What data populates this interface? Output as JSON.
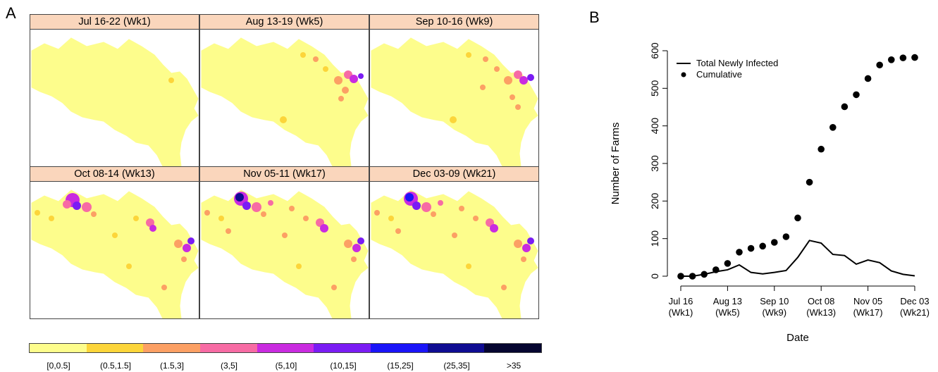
{
  "panel_a_letter": "A",
  "panel_b_letter": "B",
  "maps": [
    {
      "title": "Jul 16-22 (Wk1)"
    },
    {
      "title": "Aug 13-19 (Wk5)"
    },
    {
      "title": "Sep 10-16 (Wk9)"
    },
    {
      "title": "Oct 08-14 (Wk13)"
    },
    {
      "title": "Nov 05-11 (Wk17)"
    },
    {
      "title": "Dec 03-09 (Wk21)"
    }
  ],
  "legend": {
    "labels": [
      "[0,0.5]",
      "(0.5,1.5]",
      "(1.5,3]",
      "(3,5]",
      "(5,10]",
      "(10,15]",
      "(15,25]",
      "(25,35]",
      ">35"
    ],
    "colors": [
      "#fdfd8c",
      "#fcd53a",
      "#fca064",
      "#f76ba4",
      "#c92be0",
      "#7a1cf4",
      "#1a14f8",
      "#0f0c92",
      "#050530"
    ]
  },
  "chart_data": {
    "type": "line",
    "xlabel": "Date",
    "ylabel": "Number of Farms",
    "ylim": [
      0,
      600
    ],
    "yticks": [
      0,
      100,
      200,
      300,
      400,
      500,
      600
    ],
    "xtick_labels": [
      {
        "date": "Jul 16",
        "week": "(Wk1)"
      },
      {
        "date": "Aug 13",
        "week": "(Wk5)"
      },
      {
        "date": "Sep 10",
        "week": "(Wk9)"
      },
      {
        "date": "Oct 08",
        "week": "(Wk13)"
      },
      {
        "date": "Nov 05",
        "week": "(Wk17)"
      },
      {
        "date": "Dec 03",
        "week": "(Wk21)"
      }
    ],
    "x": [
      1,
      2,
      3,
      4,
      5,
      6,
      7,
      8,
      9,
      10,
      11,
      12,
      13,
      14,
      15,
      16,
      17,
      18,
      19,
      20,
      21
    ],
    "series": [
      {
        "name": "Total Newly Infected",
        "style": "line",
        "values": [
          0,
          0,
          5,
          12,
          17,
          30,
          10,
          6,
          10,
          15,
          50,
          95,
          88,
          58,
          55,
          32,
          43,
          36,
          14,
          5,
          1
        ]
      },
      {
        "name": "Cumulative",
        "style": "points",
        "values": [
          0,
          0,
          5,
          17,
          34,
          64,
          74,
          80,
          90,
          105,
          155,
          250,
          338,
          396,
          451,
          483,
          526,
          562,
          576,
          581,
          582
        ]
      }
    ],
    "legend_position": "top-left"
  }
}
